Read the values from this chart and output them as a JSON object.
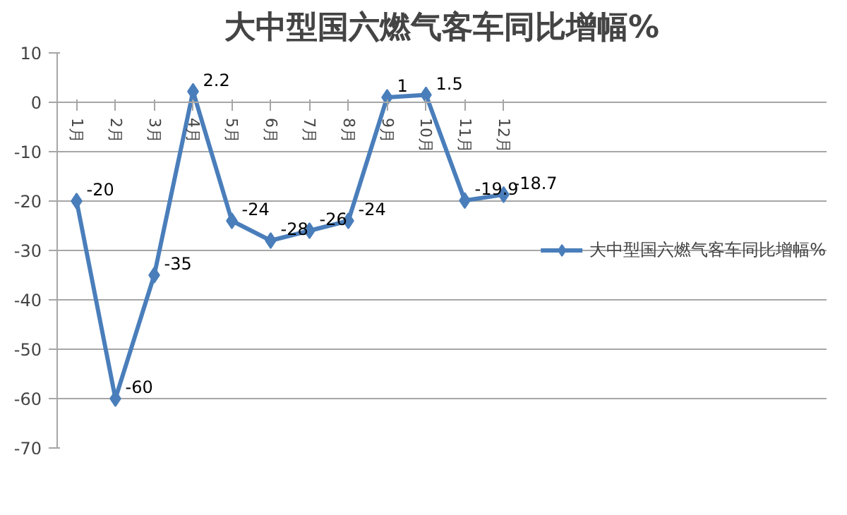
{
  "chart_data": {
    "type": "line",
    "title": "大中型国六燃气客车同比增幅%",
    "categories": [
      "1月",
      "2月",
      "3月",
      "4月",
      "5月",
      "6月",
      "7月",
      "8月",
      "9月",
      "10月",
      "11月",
      "12月"
    ],
    "series": [
      {
        "name": "大中型国六燃气客车同比增幅%",
        "color": "#4a7ebb",
        "values": [
          -20,
          -60,
          -35,
          2.2,
          -24,
          -28,
          -26,
          -24,
          1,
          1.5,
          -19.9,
          -18.7
        ]
      }
    ],
    "ylim": [
      -70,
      10
    ],
    "yticks": [
      -70,
      -60,
      -50,
      -40,
      -30,
      -20,
      -10,
      0,
      10
    ],
    "grid": "y",
    "legend": "right",
    "marker": "diamond",
    "line_style": "solid",
    "data_labels": true
  }
}
